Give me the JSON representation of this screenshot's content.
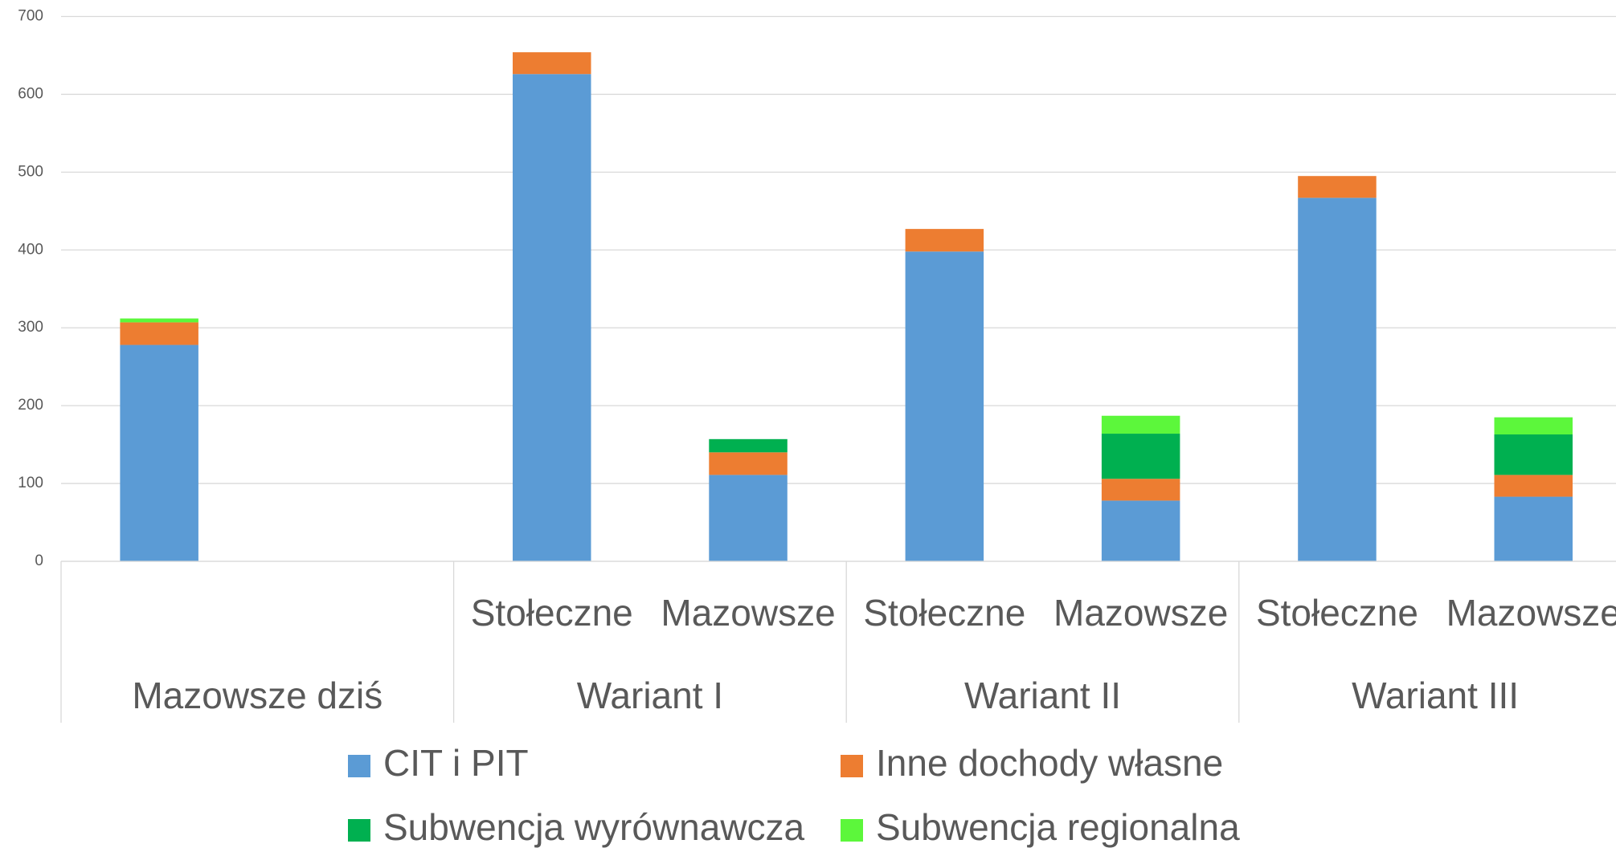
{
  "chart_data": {
    "type": "stacked-bar",
    "categories": [
      null,
      null,
      "Stołeczne",
      "Mazowsze",
      "Stołeczne",
      "Mazowsze",
      "Stołeczne",
      "Mazowsze"
    ],
    "groups": [
      "Mazowsze dziś",
      "Wariant I",
      "Wariant II",
      "Wariant III"
    ],
    "series": [
      {
        "name": "CIT i PIT",
        "color": "#5b9bd5",
        "values": [
          278,
          null,
          626,
          111,
          398,
          78,
          467,
          83
        ]
      },
      {
        "name": "Inne dochody własne",
        "color": "#ed7d31",
        "values": [
          29,
          null,
          28,
          29,
          29,
          28,
          28,
          28
        ]
      },
      {
        "name": "Subwencja wyrównawcza",
        "color": "#00b050",
        "values": [
          0,
          null,
          0,
          17,
          0,
          58,
          0,
          52
        ]
      },
      {
        "name": "Subwencja regionalna",
        "color": "#5cf73b",
        "values": [
          5,
          null,
          0,
          0,
          0,
          23,
          0,
          22
        ]
      }
    ],
    "ylim": [
      0,
      700
    ],
    "yticks": [
      0,
      100,
      200,
      300,
      400,
      500,
      600,
      700
    ],
    "grid": true,
    "legend": "bottom"
  }
}
